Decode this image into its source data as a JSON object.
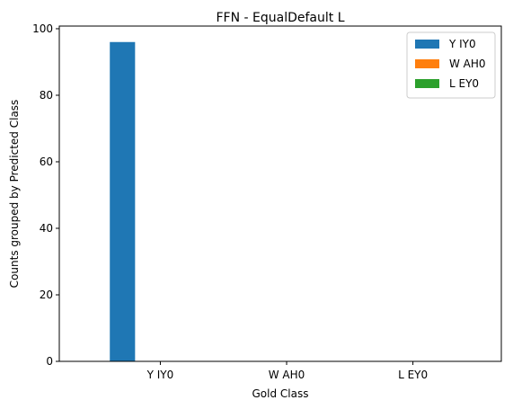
{
  "chart_data": {
    "type": "bar",
    "title": "FFN - EqualDefault L",
    "xlabel": "Gold Class",
    "ylabel": "Counts grouped by Predicted Class",
    "categories": [
      "Y IY0",
      "W AH0",
      "L EY0"
    ],
    "series": [
      {
        "name": "Y IY0",
        "color": "#1f77b4",
        "values": [
          96,
          0,
          0
        ]
      },
      {
        "name": "W AH0",
        "color": "#ff7f0e",
        "values": [
          0,
          0,
          0
        ]
      },
      {
        "name": "L EY0",
        "color": "#2ca02c",
        "values": [
          0,
          0,
          0
        ]
      }
    ],
    "ylim": [
      0,
      100.8
    ],
    "yticks": [
      0,
      20,
      40,
      60,
      80,
      100
    ],
    "grid": false,
    "legend_position": "top-right"
  }
}
